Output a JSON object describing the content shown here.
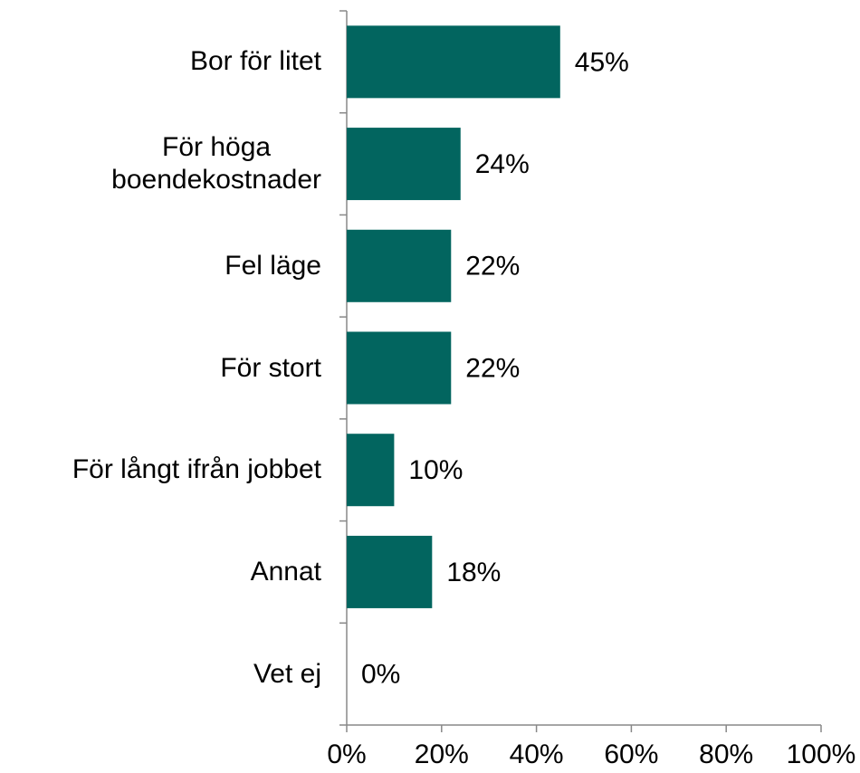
{
  "chart_data": {
    "type": "bar",
    "orientation": "horizontal",
    "categories": [
      "Bor för litet",
      "För höga\nboendekostnader",
      "Fel läge",
      "För stort",
      "För långt ifrån jobbet",
      "Annat",
      "Vet ej"
    ],
    "values": [
      45,
      24,
      22,
      22,
      10,
      18,
      0
    ],
    "value_labels": [
      "45%",
      "24%",
      "22%",
      "22%",
      "10%",
      "18%",
      "0%"
    ],
    "color": "#02655f",
    "xlim": [
      0,
      100
    ],
    "xticks": [
      {
        "value": 0,
        "label": "0%"
      },
      {
        "value": 20,
        "label": "20%"
      },
      {
        "value": 40,
        "label": "40%"
      },
      {
        "value": 60,
        "label": "60%"
      },
      {
        "value": 80,
        "label": "80%"
      },
      {
        "value": 100,
        "label": "100%"
      }
    ],
    "grid": false
  }
}
